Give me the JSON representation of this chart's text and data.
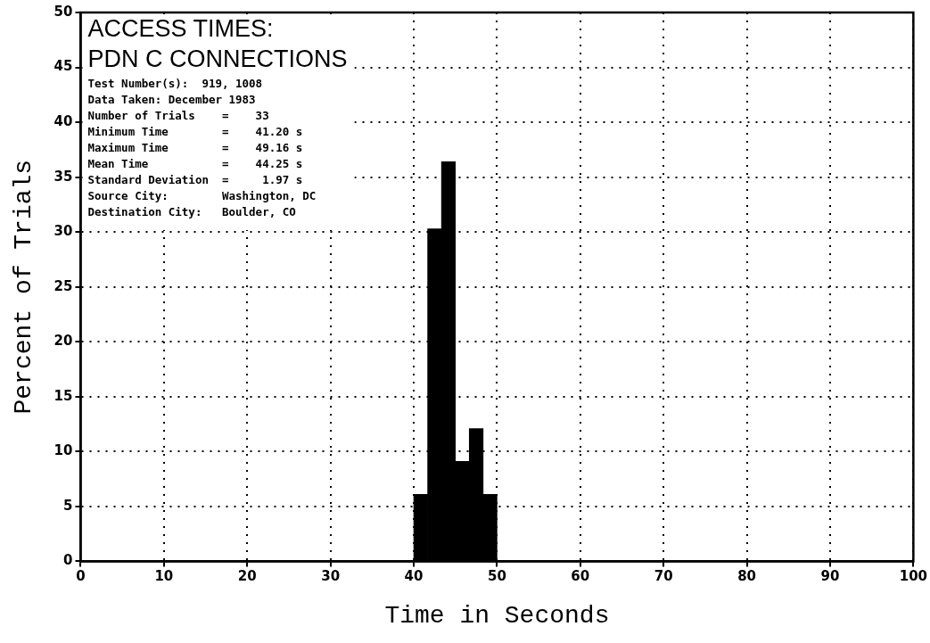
{
  "chart_data": {
    "type": "histogram",
    "title": [
      "ACCESS TIMES:",
      "PDN C CONNECTIONS"
    ],
    "xlabel": "Time in Seconds",
    "ylabel": "Percent of Trials",
    "bins": [
      40,
      41.67,
      43.33,
      45,
      46.67,
      48.33,
      50
    ],
    "values": [
      6.1,
      30.3,
      36.4,
      9.1,
      12.1,
      6.1
    ],
    "color": "#000000",
    "xlim": [
      0,
      100
    ],
    "xticks": [
      0,
      10,
      20,
      30,
      40,
      50,
      60,
      70,
      80,
      90,
      100
    ],
    "ylim": [
      0,
      50
    ],
    "yticks": [
      0,
      5,
      10,
      15,
      20,
      25,
      30,
      35,
      40,
      45,
      50
    ],
    "grid": true,
    "legend": false,
    "annotations": [
      "Test Number(s):  919, 1008",
      "Data Taken: December 1983",
      "Number of Trials    =    33",
      "Minimum Time        =    41.20 s",
      "Maximum Time        =    49.16 s",
      "Mean Time           =    44.25 s",
      "Standard Deviation  =     1.97 s",
      "Source City:        Washington, DC",
      "Destination City:   Boulder, CO"
    ]
  }
}
